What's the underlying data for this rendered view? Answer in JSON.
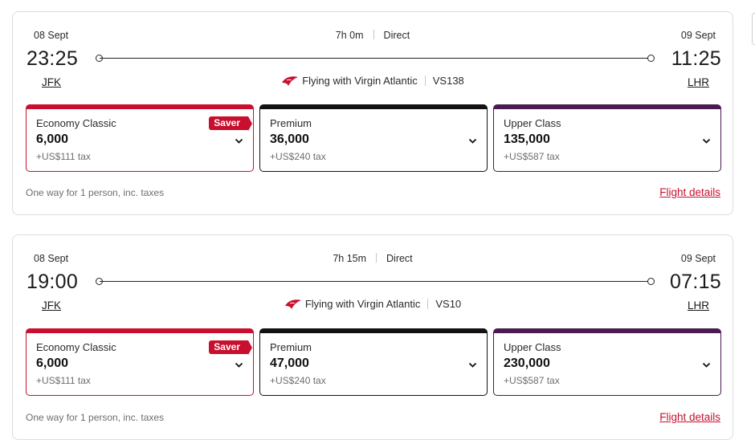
{
  "flights": [
    {
      "departure": {
        "date": "08 Sept",
        "time": "23:25",
        "airport": "JFK"
      },
      "arrival": {
        "date": "09 Sept",
        "time": "11:25",
        "airport": "LHR"
      },
      "duration": "7h 0m",
      "stops": "Direct",
      "carrier": "Flying with Virgin Atlantic",
      "flight_number": "VS138",
      "fares": [
        {
          "cabin": "Economy Classic",
          "points": "6,000",
          "tax": "+US$111 tax",
          "badge": "Saver"
        },
        {
          "cabin": "Premium",
          "points": "36,000",
          "tax": "+US$240 tax"
        },
        {
          "cabin": "Upper Class",
          "points": "135,000",
          "tax": "+US$587 tax"
        }
      ],
      "note": "One way for 1 person, inc. taxes",
      "details_label": "Flight details"
    },
    {
      "departure": {
        "date": "08 Sept",
        "time": "19:00",
        "airport": "JFK"
      },
      "arrival": {
        "date": "09 Sept",
        "time": "07:15",
        "airport": "LHR"
      },
      "duration": "7h 15m",
      "stops": "Direct",
      "carrier": "Flying with Virgin Atlantic",
      "flight_number": "VS10",
      "fares": [
        {
          "cabin": "Economy Classic",
          "points": "6,000",
          "tax": "+US$111 tax",
          "badge": "Saver"
        },
        {
          "cabin": "Premium",
          "points": "47,000",
          "tax": "+US$240 tax"
        },
        {
          "cabin": "Upper Class",
          "points": "230,000",
          "tax": "+US$587 tax"
        }
      ],
      "note": "One way for 1 person, inc. taxes",
      "details_label": "Flight details"
    }
  ],
  "colors": {
    "economy": "#c8102e",
    "premium": "#121212",
    "upper": "#4b1a4e",
    "link": "#c8102e"
  },
  "icons": {
    "carrier_logo": "virgin-atlantic-logo-icon",
    "dropdown": "chevron-down-icon"
  }
}
